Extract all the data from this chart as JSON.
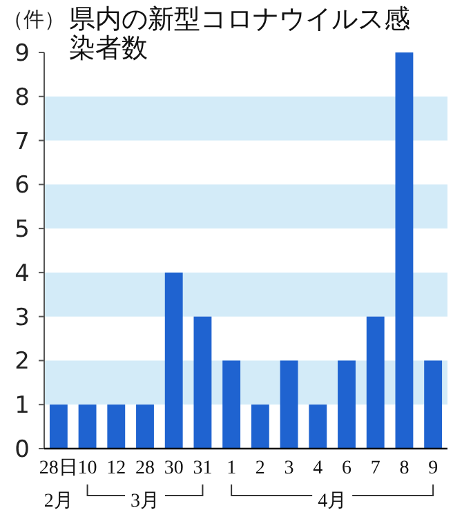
{
  "chart_data": {
    "type": "bar",
    "title": "県内の新型コロナウイルス感染者数",
    "ylabel": "（件）",
    "categories": [
      "28日",
      "10",
      "12",
      "28",
      "30",
      "31",
      "1",
      "2",
      "3",
      "4",
      "6",
      "7",
      "8",
      "9"
    ],
    "values": [
      1,
      1,
      1,
      1,
      4,
      3,
      2,
      1,
      2,
      1,
      2,
      3,
      9,
      2
    ],
    "color": "#1f63d0",
    "ylim": [
      0,
      9
    ],
    "yticks": [
      0,
      1,
      2,
      3,
      4,
      5,
      6,
      7,
      8,
      9
    ],
    "bands": [
      {
        "axis": "y",
        "from": 1,
        "to": 2,
        "color": "#d3ebf8"
      },
      {
        "axis": "y",
        "from": 3,
        "to": 4,
        "color": "#d3ebf8"
      },
      {
        "axis": "y",
        "from": 5,
        "to": 6,
        "color": "#d3ebf8"
      },
      {
        "axis": "y",
        "from": 7,
        "to": 8,
        "color": "#d3ebf8"
      }
    ],
    "annotations": [
      "2月",
      "3月",
      "4月"
    ]
  }
}
